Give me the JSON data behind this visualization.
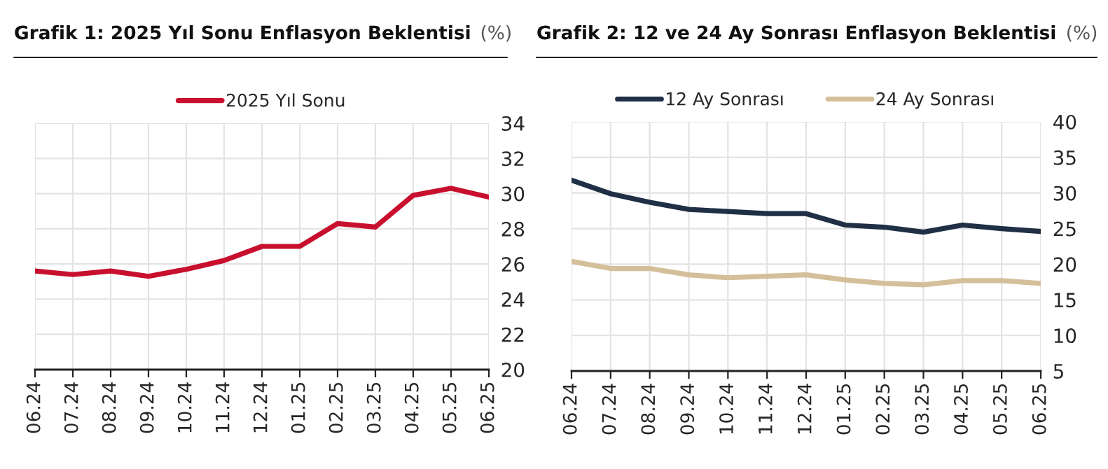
{
  "chart_data": [
    {
      "type": "line",
      "title": "Grafik 1: 2025 Yıl Sonu Enflasyon Beklentisi",
      "subtitle": "(%)",
      "categories": [
        "06.24",
        "07.24",
        "08.24",
        "09.24",
        "10.24",
        "11.24",
        "12.24",
        "01.25",
        "02.25",
        "03.25",
        "04.25",
        "05.25",
        "06.25"
      ],
      "series": [
        {
          "name": "2025 Yıl Sonu",
          "color": "#c8102e",
          "values": [
            25.6,
            25.4,
            25.6,
            25.3,
            25.7,
            26.2,
            27.0,
            27.0,
            28.3,
            28.1,
            29.9,
            30.3,
            29.8
          ]
        }
      ],
      "ylim": [
        20,
        34
      ],
      "yticks": [
        20,
        22,
        24,
        26,
        28,
        30,
        32,
        34
      ],
      "grid": true,
      "legend": "top",
      "marker": "none",
      "line_style": "solid"
    },
    {
      "type": "line",
      "title": "Grafik 2: 12 ve 24 Ay Sonrası Enflasyon Beklentisi",
      "subtitle": "(%)",
      "categories": [
        "06.24",
        "07.24",
        "08.24",
        "09.24",
        "10.24",
        "11.24",
        "12.24",
        "01.25",
        "02.25",
        "03.25",
        "04.25",
        "05.25",
        "06.25"
      ],
      "series": [
        {
          "name": "12 Ay Sonrası",
          "color": "#1f2f45",
          "values": [
            31.8,
            29.9,
            28.7,
            27.7,
            27.4,
            27.1,
            27.1,
            25.5,
            25.2,
            24.5,
            25.5,
            25.0,
            24.6
          ]
        },
        {
          "name": "24 Ay Sonrası",
          "color": "#d4bf9a",
          "values": [
            20.4,
            19.4,
            19.4,
            18.5,
            18.1,
            18.3,
            18.5,
            17.8,
            17.3,
            17.1,
            17.7,
            17.7,
            17.3
          ]
        }
      ],
      "ylim": [
        5,
        40
      ],
      "yticks": [
        5,
        10,
        15,
        20,
        25,
        30,
        35,
        40
      ],
      "grid": true,
      "legend": "top",
      "marker": "none",
      "line_style": "solid"
    }
  ]
}
